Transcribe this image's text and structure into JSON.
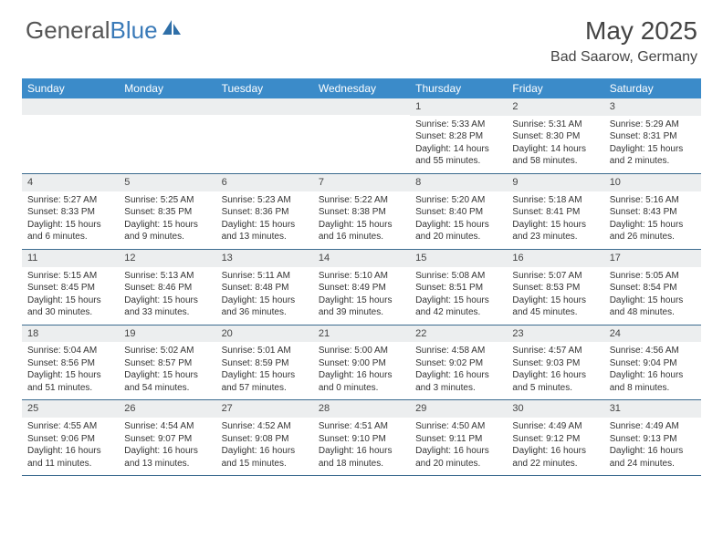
{
  "logo": {
    "textGray": "General",
    "textBlue": "Blue"
  },
  "title": "May 2025",
  "location": "Bad Saarow, Germany",
  "colors": {
    "headerBar": "#3b8bc9",
    "rowDivider": "#3b6b8f",
    "dayNumBg": "#eceeef",
    "logoBlue": "#3a7ab8",
    "textGray": "#555"
  },
  "daysOfWeek": [
    "Sunday",
    "Monday",
    "Tuesday",
    "Wednesday",
    "Thursday",
    "Friday",
    "Saturday"
  ],
  "weeks": [
    [
      {
        "n": "",
        "sunrise": "",
        "sunset": "",
        "daylight": ""
      },
      {
        "n": "",
        "sunrise": "",
        "sunset": "",
        "daylight": ""
      },
      {
        "n": "",
        "sunrise": "",
        "sunset": "",
        "daylight": ""
      },
      {
        "n": "",
        "sunrise": "",
        "sunset": "",
        "daylight": ""
      },
      {
        "n": "1",
        "sunrise": "Sunrise: 5:33 AM",
        "sunset": "Sunset: 8:28 PM",
        "daylight": "Daylight: 14 hours and 55 minutes."
      },
      {
        "n": "2",
        "sunrise": "Sunrise: 5:31 AM",
        "sunset": "Sunset: 8:30 PM",
        "daylight": "Daylight: 14 hours and 58 minutes."
      },
      {
        "n": "3",
        "sunrise": "Sunrise: 5:29 AM",
        "sunset": "Sunset: 8:31 PM",
        "daylight": "Daylight: 15 hours and 2 minutes."
      }
    ],
    [
      {
        "n": "4",
        "sunrise": "Sunrise: 5:27 AM",
        "sunset": "Sunset: 8:33 PM",
        "daylight": "Daylight: 15 hours and 6 minutes."
      },
      {
        "n": "5",
        "sunrise": "Sunrise: 5:25 AM",
        "sunset": "Sunset: 8:35 PM",
        "daylight": "Daylight: 15 hours and 9 minutes."
      },
      {
        "n": "6",
        "sunrise": "Sunrise: 5:23 AM",
        "sunset": "Sunset: 8:36 PM",
        "daylight": "Daylight: 15 hours and 13 minutes."
      },
      {
        "n": "7",
        "sunrise": "Sunrise: 5:22 AM",
        "sunset": "Sunset: 8:38 PM",
        "daylight": "Daylight: 15 hours and 16 minutes."
      },
      {
        "n": "8",
        "sunrise": "Sunrise: 5:20 AM",
        "sunset": "Sunset: 8:40 PM",
        "daylight": "Daylight: 15 hours and 20 minutes."
      },
      {
        "n": "9",
        "sunrise": "Sunrise: 5:18 AM",
        "sunset": "Sunset: 8:41 PM",
        "daylight": "Daylight: 15 hours and 23 minutes."
      },
      {
        "n": "10",
        "sunrise": "Sunrise: 5:16 AM",
        "sunset": "Sunset: 8:43 PM",
        "daylight": "Daylight: 15 hours and 26 minutes."
      }
    ],
    [
      {
        "n": "11",
        "sunrise": "Sunrise: 5:15 AM",
        "sunset": "Sunset: 8:45 PM",
        "daylight": "Daylight: 15 hours and 30 minutes."
      },
      {
        "n": "12",
        "sunrise": "Sunrise: 5:13 AM",
        "sunset": "Sunset: 8:46 PM",
        "daylight": "Daylight: 15 hours and 33 minutes."
      },
      {
        "n": "13",
        "sunrise": "Sunrise: 5:11 AM",
        "sunset": "Sunset: 8:48 PM",
        "daylight": "Daylight: 15 hours and 36 minutes."
      },
      {
        "n": "14",
        "sunrise": "Sunrise: 5:10 AM",
        "sunset": "Sunset: 8:49 PM",
        "daylight": "Daylight: 15 hours and 39 minutes."
      },
      {
        "n": "15",
        "sunrise": "Sunrise: 5:08 AM",
        "sunset": "Sunset: 8:51 PM",
        "daylight": "Daylight: 15 hours and 42 minutes."
      },
      {
        "n": "16",
        "sunrise": "Sunrise: 5:07 AM",
        "sunset": "Sunset: 8:53 PM",
        "daylight": "Daylight: 15 hours and 45 minutes."
      },
      {
        "n": "17",
        "sunrise": "Sunrise: 5:05 AM",
        "sunset": "Sunset: 8:54 PM",
        "daylight": "Daylight: 15 hours and 48 minutes."
      }
    ],
    [
      {
        "n": "18",
        "sunrise": "Sunrise: 5:04 AM",
        "sunset": "Sunset: 8:56 PM",
        "daylight": "Daylight: 15 hours and 51 minutes."
      },
      {
        "n": "19",
        "sunrise": "Sunrise: 5:02 AM",
        "sunset": "Sunset: 8:57 PM",
        "daylight": "Daylight: 15 hours and 54 minutes."
      },
      {
        "n": "20",
        "sunrise": "Sunrise: 5:01 AM",
        "sunset": "Sunset: 8:59 PM",
        "daylight": "Daylight: 15 hours and 57 minutes."
      },
      {
        "n": "21",
        "sunrise": "Sunrise: 5:00 AM",
        "sunset": "Sunset: 9:00 PM",
        "daylight": "Daylight: 16 hours and 0 minutes."
      },
      {
        "n": "22",
        "sunrise": "Sunrise: 4:58 AM",
        "sunset": "Sunset: 9:02 PM",
        "daylight": "Daylight: 16 hours and 3 minutes."
      },
      {
        "n": "23",
        "sunrise": "Sunrise: 4:57 AM",
        "sunset": "Sunset: 9:03 PM",
        "daylight": "Daylight: 16 hours and 5 minutes."
      },
      {
        "n": "24",
        "sunrise": "Sunrise: 4:56 AM",
        "sunset": "Sunset: 9:04 PM",
        "daylight": "Daylight: 16 hours and 8 minutes."
      }
    ],
    [
      {
        "n": "25",
        "sunrise": "Sunrise: 4:55 AM",
        "sunset": "Sunset: 9:06 PM",
        "daylight": "Daylight: 16 hours and 11 minutes."
      },
      {
        "n": "26",
        "sunrise": "Sunrise: 4:54 AM",
        "sunset": "Sunset: 9:07 PM",
        "daylight": "Daylight: 16 hours and 13 minutes."
      },
      {
        "n": "27",
        "sunrise": "Sunrise: 4:52 AM",
        "sunset": "Sunset: 9:08 PM",
        "daylight": "Daylight: 16 hours and 15 minutes."
      },
      {
        "n": "28",
        "sunrise": "Sunrise: 4:51 AM",
        "sunset": "Sunset: 9:10 PM",
        "daylight": "Daylight: 16 hours and 18 minutes."
      },
      {
        "n": "29",
        "sunrise": "Sunrise: 4:50 AM",
        "sunset": "Sunset: 9:11 PM",
        "daylight": "Daylight: 16 hours and 20 minutes."
      },
      {
        "n": "30",
        "sunrise": "Sunrise: 4:49 AM",
        "sunset": "Sunset: 9:12 PM",
        "daylight": "Daylight: 16 hours and 22 minutes."
      },
      {
        "n": "31",
        "sunrise": "Sunrise: 4:49 AM",
        "sunset": "Sunset: 9:13 PM",
        "daylight": "Daylight: 16 hours and 24 minutes."
      }
    ]
  ]
}
